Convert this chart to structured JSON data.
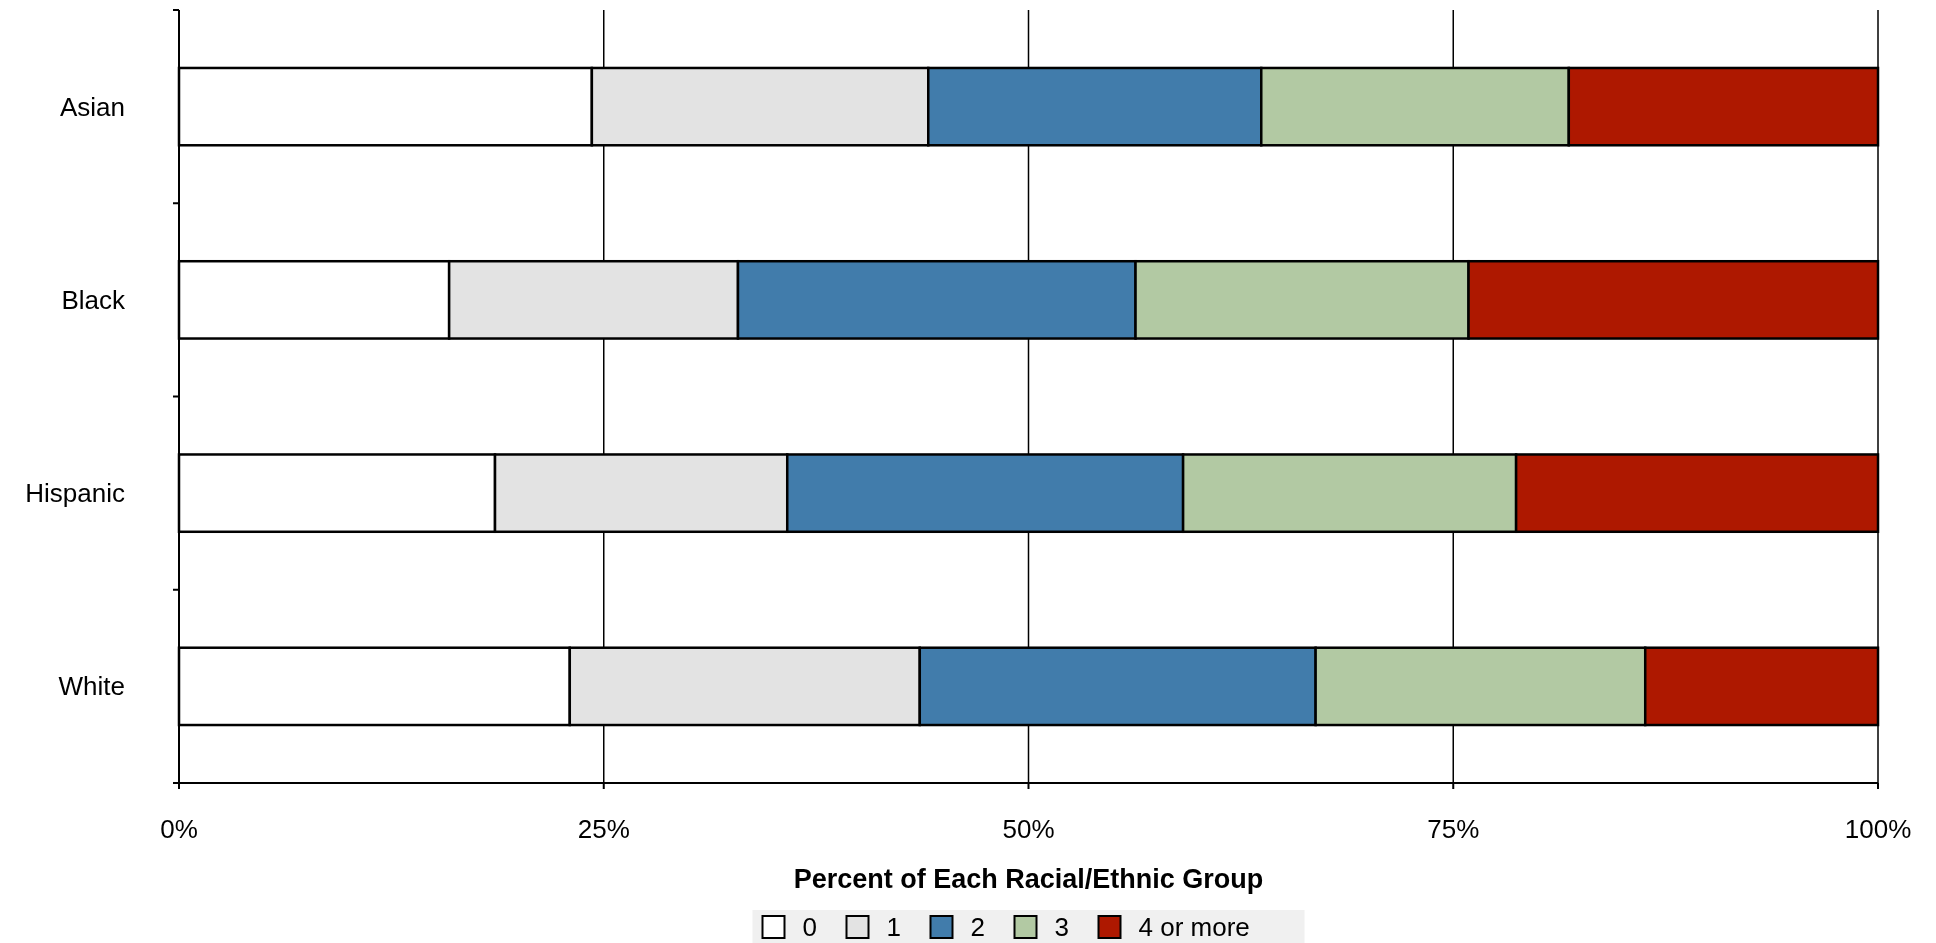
{
  "chart_data": {
    "type": "bar",
    "orientation": "horizontal",
    "stacked": true,
    "xlabel": "Percent of Each Racial/Ethnic Group",
    "categories": [
      "Asian",
      "Black",
      "Hispanic",
      "White"
    ],
    "series": [
      {
        "name": "0",
        "color": "#ffffff",
        "values": [
          24.3,
          15.9,
          18.6,
          23.0
        ]
      },
      {
        "name": "1",
        "color": "#e3e3e3",
        "values": [
          19.8,
          17.0,
          17.2,
          20.6
        ]
      },
      {
        "name": "2",
        "color": "#417cab",
        "values": [
          19.6,
          23.4,
          23.3,
          23.3
        ]
      },
      {
        "name": "3",
        "color": "#b2c9a3",
        "values": [
          18.1,
          19.6,
          19.6,
          19.4
        ]
      },
      {
        "name": "4 or more",
        "color": "#ae1800",
        "values": [
          18.2,
          24.1,
          21.3,
          13.7
        ]
      }
    ],
    "xlim": [
      0,
      100
    ],
    "xticks": [
      {
        "value": 0,
        "label": "0%"
      },
      {
        "value": 25,
        "label": "25%"
      },
      {
        "value": 50,
        "label": "50%"
      },
      {
        "value": 75,
        "label": "75%"
      },
      {
        "value": 100,
        "label": "100%"
      }
    ],
    "grid": "x",
    "legend": "bottom"
  }
}
